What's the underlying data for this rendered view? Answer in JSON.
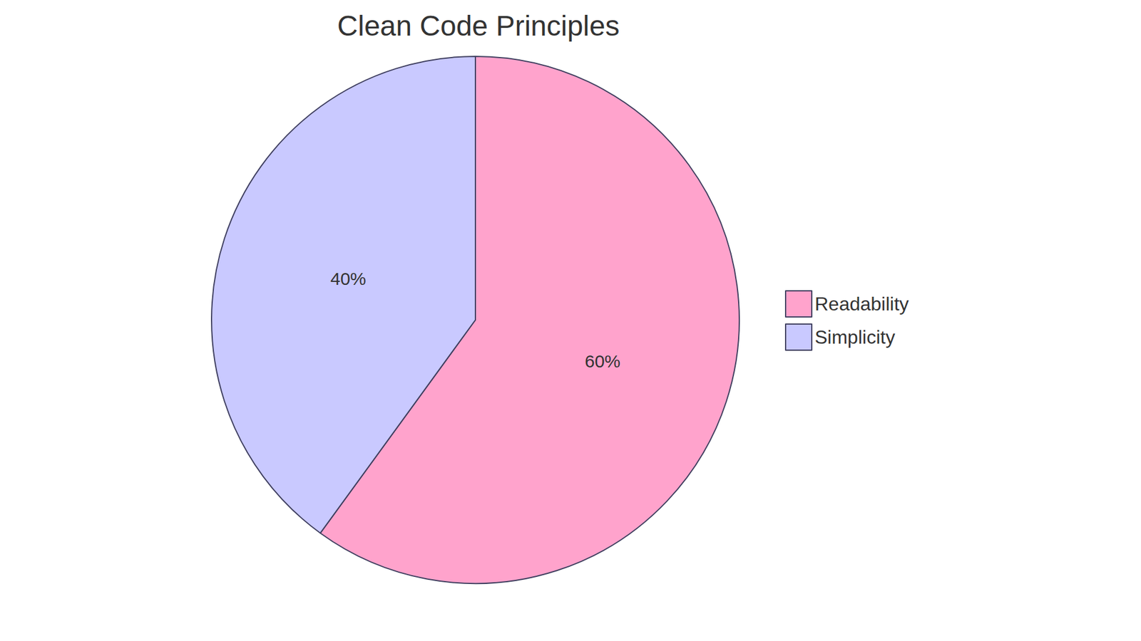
{
  "chart_data": {
    "type": "pie",
    "title": "Clean Code Principles",
    "categories": [
      "Readability",
      "Simplicity"
    ],
    "values": [
      60,
      40
    ],
    "value_labels": [
      "60%",
      "40%"
    ],
    "colors": [
      "#ffa3cc",
      "#c9c9ff"
    ],
    "data_labels": true,
    "legend": "right"
  }
}
